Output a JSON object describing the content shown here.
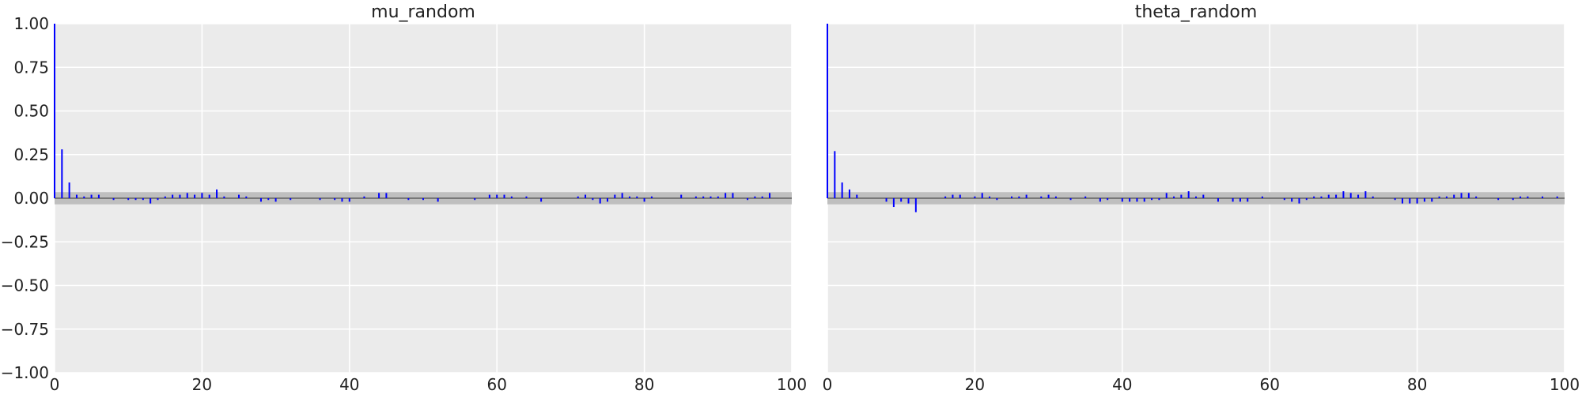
{
  "chart_data": [
    {
      "type": "bar",
      "subtype": "autocorrelation",
      "title": "mu_random",
      "xlabel": "",
      "ylabel": "",
      "xlim": [
        0,
        100
      ],
      "ylim": [
        -1.0,
        1.0
      ],
      "x_ticks": [
        "0",
        "20",
        "40",
        "60",
        "80",
        "100"
      ],
      "y_ticks": [
        "1.00",
        "0.75",
        "0.50",
        "0.25",
        "0.00",
        "−0.25",
        "−0.50",
        "−0.75",
        "−1.00"
      ],
      "show_y_ticks": true,
      "grid": true,
      "confidence_band": [
        -0.035,
        0.035
      ],
      "lags": [
        0,
        1,
        2,
        3,
        4,
        5,
        6,
        7,
        8,
        9,
        10,
        11,
        12,
        13,
        14,
        15,
        16,
        17,
        18,
        19,
        20,
        21,
        22,
        23,
        24,
        25,
        26,
        27,
        28,
        29,
        30,
        31,
        32,
        33,
        34,
        35,
        36,
        37,
        38,
        39,
        40,
        41,
        42,
        43,
        44,
        45,
        46,
        47,
        48,
        49,
        50,
        51,
        52,
        53,
        54,
        55,
        56,
        57,
        58,
        59,
        60,
        61,
        62,
        63,
        64,
        65,
        66,
        67,
        68,
        69,
        70,
        71,
        72,
        73,
        74,
        75,
        76,
        77,
        78,
        79,
        80,
        81,
        82,
        83,
        84,
        85,
        86,
        87,
        88,
        89,
        90,
        91,
        92,
        93,
        94,
        95,
        96,
        97,
        98,
        99
      ],
      "values": [
        1.0,
        0.28,
        0.09,
        0.02,
        0.01,
        0.02,
        0.02,
        0.0,
        -0.01,
        0.0,
        -0.01,
        -0.01,
        -0.01,
        -0.03,
        -0.01,
        0.01,
        0.02,
        0.02,
        0.03,
        0.02,
        0.03,
        0.02,
        0.05,
        0.01,
        0.0,
        0.02,
        0.01,
        0.0,
        -0.02,
        -0.01,
        -0.02,
        0.0,
        -0.01,
        0.0,
        0.0,
        0.0,
        -0.01,
        0.0,
        -0.01,
        -0.02,
        -0.02,
        0.0,
        0.01,
        0.0,
        0.03,
        0.03,
        0.0,
        0.0,
        -0.01,
        0.0,
        -0.01,
        0.0,
        -0.02,
        0.0,
        0.0,
        0.0,
        0.0,
        -0.01,
        0.0,
        0.02,
        0.02,
        0.02,
        0.01,
        0.0,
        0.01,
        0.0,
        -0.02,
        0.0,
        0.0,
        0.0,
        0.0,
        0.01,
        0.02,
        -0.01,
        -0.03,
        -0.02,
        0.02,
        0.03,
        0.01,
        0.01,
        -0.02,
        0.01,
        0.0,
        0.0,
        0.0,
        0.02,
        0.0,
        0.01,
        0.01,
        0.01,
        0.01,
        0.03,
        0.03,
        0.0,
        -0.01,
        0.01,
        0.01,
        0.03,
        0.0,
        0.0
      ]
    },
    {
      "type": "bar",
      "subtype": "autocorrelation",
      "title": "theta_random",
      "xlabel": "",
      "ylabel": "",
      "xlim": [
        0,
        100
      ],
      "ylim": [
        -1.0,
        1.0
      ],
      "x_ticks": [
        "0",
        "20",
        "40",
        "60",
        "80",
        "100"
      ],
      "y_ticks": [],
      "show_y_ticks": false,
      "grid": true,
      "confidence_band": [
        -0.035,
        0.035
      ],
      "lags": [
        0,
        1,
        2,
        3,
        4,
        5,
        6,
        7,
        8,
        9,
        10,
        11,
        12,
        13,
        14,
        15,
        16,
        17,
        18,
        19,
        20,
        21,
        22,
        23,
        24,
        25,
        26,
        27,
        28,
        29,
        30,
        31,
        32,
        33,
        34,
        35,
        36,
        37,
        38,
        39,
        40,
        41,
        42,
        43,
        44,
        45,
        46,
        47,
        48,
        49,
        50,
        51,
        52,
        53,
        54,
        55,
        56,
        57,
        58,
        59,
        60,
        61,
        62,
        63,
        64,
        65,
        66,
        67,
        68,
        69,
        70,
        71,
        72,
        73,
        74,
        75,
        76,
        77,
        78,
        79,
        80,
        81,
        82,
        83,
        84,
        85,
        86,
        87,
        88,
        89,
        90,
        91,
        92,
        93,
        94,
        95,
        96,
        97,
        98,
        99
      ],
      "values": [
        1.0,
        0.27,
        0.09,
        0.05,
        0.02,
        0.0,
        0.0,
        0.0,
        -0.02,
        -0.05,
        -0.02,
        -0.03,
        -0.08,
        0.0,
        0.0,
        0.0,
        0.01,
        0.02,
        0.02,
        0.0,
        0.01,
        0.03,
        0.01,
        -0.01,
        0.0,
        0.01,
        0.01,
        0.02,
        0.0,
        0.01,
        0.02,
        0.01,
        0.0,
        -0.01,
        0.0,
        0.01,
        0.0,
        -0.02,
        -0.01,
        0.0,
        -0.02,
        -0.02,
        -0.02,
        -0.02,
        -0.01,
        -0.01,
        0.03,
        0.01,
        0.02,
        0.04,
        0.01,
        0.02,
        0.0,
        -0.02,
        0.0,
        -0.02,
        -0.02,
        -0.02,
        0.0,
        0.01,
        0.0,
        0.0,
        -0.01,
        -0.02,
        -0.03,
        -0.01,
        0.01,
        0.01,
        0.02,
        0.02,
        0.04,
        0.03,
        0.02,
        0.04,
        0.01,
        0.0,
        0.0,
        -0.01,
        -0.03,
        -0.03,
        -0.03,
        -0.02,
        -0.02,
        0.01,
        0.01,
        0.02,
        0.03,
        0.03,
        0.01,
        0.0,
        0.0,
        -0.01,
        0.0,
        -0.01,
        0.01,
        0.01,
        0.0,
        0.01,
        0.0,
        0.01
      ]
    }
  ],
  "colors": {
    "bar": "#0000ff",
    "band": "#bfbfbf",
    "plot_background": "#ebebeb",
    "grid": "#ffffff",
    "zero_line": "#000000"
  }
}
